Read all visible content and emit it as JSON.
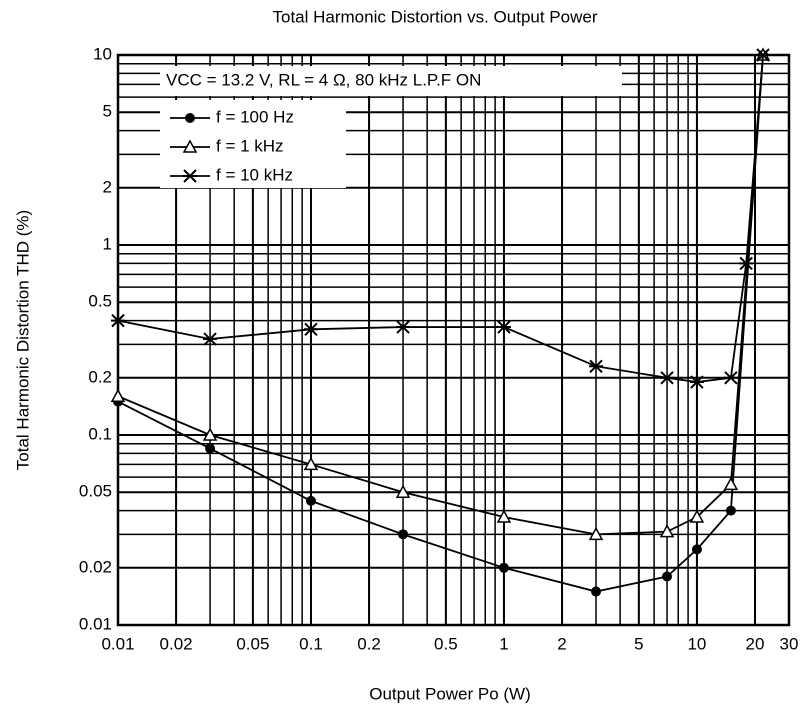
{
  "chart_data": {
    "type": "line",
    "title": "Total Harmonic Distortion vs. Output Power",
    "x_label": "Output Power  Po  (W)",
    "y_label": "Total Harmonic Distortion  THD  (%)",
    "annotation": "VCC = 13.2 V, RL = 4 Ω, 80 kHz L.P.F ON",
    "xscale": "log",
    "yscale": "log",
    "grid": true,
    "legend": "upper left",
    "xlim": [
      0.01,
      30
    ],
    "ylim": [
      0.01,
      10
    ],
    "xticks": [
      0.01,
      0.02,
      0.05,
      0.1,
      0.2,
      0.5,
      1,
      2,
      5,
      10,
      20,
      30
    ],
    "yticks": [
      0.01,
      0.02,
      0.05,
      0.1,
      0.2,
      0.5,
      1,
      2,
      5,
      10
    ],
    "series": [
      {
        "name": "f = 100 Hz",
        "color": "#000000",
        "marker": "circle",
        "x": [
          0.01,
          0.03,
          0.1,
          0.3,
          1,
          3,
          7,
          10,
          15,
          22
        ],
        "values": [
          0.15,
          0.085,
          0.045,
          0.03,
          0.02,
          0.015,
          0.018,
          0.025,
          0.04,
          10
        ]
      },
      {
        "name": "f = 1 kHz",
        "color": "#000000",
        "marker": "triangle",
        "x": [
          0.01,
          0.03,
          0.1,
          0.3,
          1,
          3,
          7,
          10,
          15,
          22
        ],
        "values": [
          0.16,
          0.1,
          0.07,
          0.05,
          0.037,
          0.03,
          0.031,
          0.037,
          0.055,
          10
        ]
      },
      {
        "name": "f = 10 kHz",
        "color": "#000000",
        "marker": "star",
        "x": [
          0.01,
          0.03,
          0.1,
          0.3,
          1,
          3,
          7,
          10,
          15,
          18,
          22
        ],
        "values": [
          0.4,
          0.32,
          0.36,
          0.37,
          0.37,
          0.23,
          0.2,
          0.19,
          0.2,
          0.8,
          10
        ]
      }
    ]
  }
}
